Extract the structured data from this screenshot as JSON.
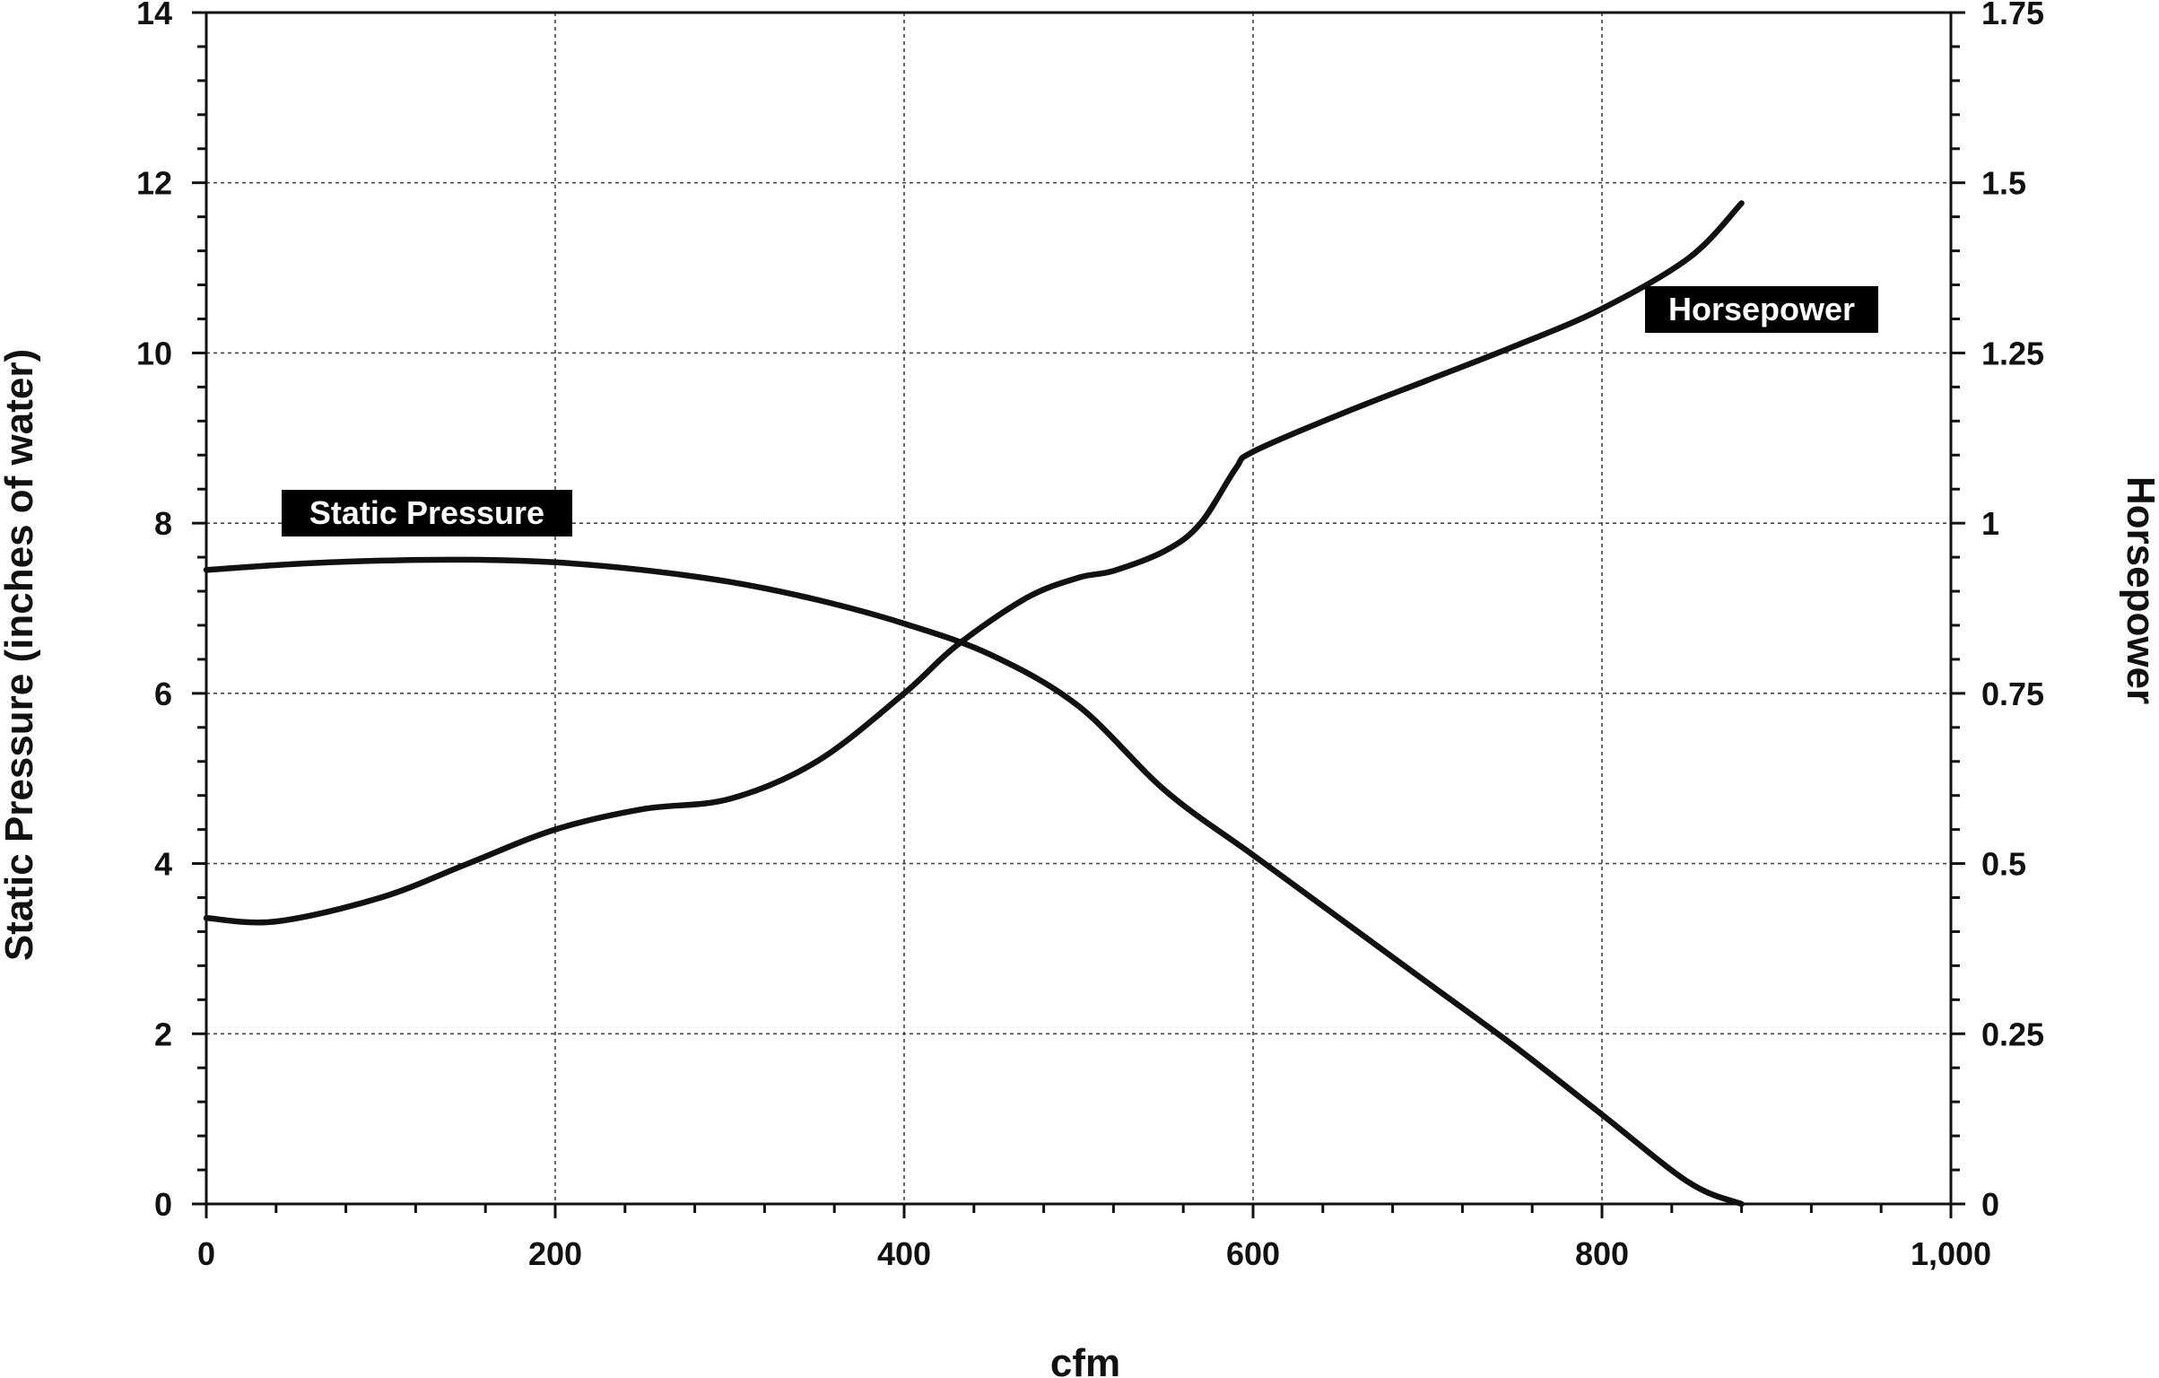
{
  "chart_data": {
    "type": "line",
    "title": "",
    "xlabel": "cfm",
    "ylabel": "Static Pressure (inches of water)",
    "y2label": "Horsepower",
    "xlim": [
      0,
      1000
    ],
    "ylim": [
      0,
      14
    ],
    "y2lim": [
      0,
      1.75
    ],
    "grid": true,
    "x_ticks": [
      "0",
      "200",
      "400",
      "600",
      "800",
      "1,000"
    ],
    "x_tick_values": [
      0,
      200,
      400,
      600,
      800,
      1000
    ],
    "y_ticks": [
      "0",
      "2",
      "4",
      "6",
      "8",
      "10",
      "12",
      "14"
    ],
    "y_tick_values": [
      0,
      2,
      4,
      6,
      8,
      10,
      12,
      14
    ],
    "y2_ticks": [
      "0",
      "0.25",
      "0.5",
      "0.75",
      "1",
      "1.25",
      "1.5",
      "1.75"
    ],
    "y2_tick_values": [
      0,
      0.25,
      0.5,
      0.75,
      1,
      1.25,
      1.5,
      1.75
    ],
    "series": [
      {
        "name": "Static Pressure",
        "axis": "left",
        "x": [
          0,
          50,
          100,
          150,
          200,
          250,
          300,
          350,
          400,
          450,
          500,
          550,
          600,
          650,
          700,
          750,
          800,
          850,
          880
        ],
        "y": [
          7.45,
          7.52,
          7.56,
          7.57,
          7.54,
          7.45,
          7.31,
          7.1,
          6.82,
          6.45,
          5.85,
          4.85,
          4.1,
          3.35,
          2.6,
          1.85,
          1.05,
          0.25,
          0.0
        ]
      },
      {
        "name": "Horsepower",
        "axis": "right",
        "x": [
          0,
          40,
          100,
          150,
          200,
          250,
          300,
          350,
          400,
          430,
          470,
          500,
          520,
          550,
          570,
          590,
          600,
          650,
          700,
          750,
          800,
          850,
          880
        ],
        "y": [
          0.42,
          0.415,
          0.45,
          0.5,
          0.55,
          0.58,
          0.595,
          0.65,
          0.75,
          0.82,
          0.89,
          0.92,
          0.93,
          0.96,
          1.0,
          1.08,
          1.105,
          1.16,
          1.21,
          1.26,
          1.315,
          1.39,
          1.47
        ]
      }
    ],
    "series_tags": {
      "static_pressure": "Static Pressure",
      "horsepower": "Horsepower"
    }
  }
}
